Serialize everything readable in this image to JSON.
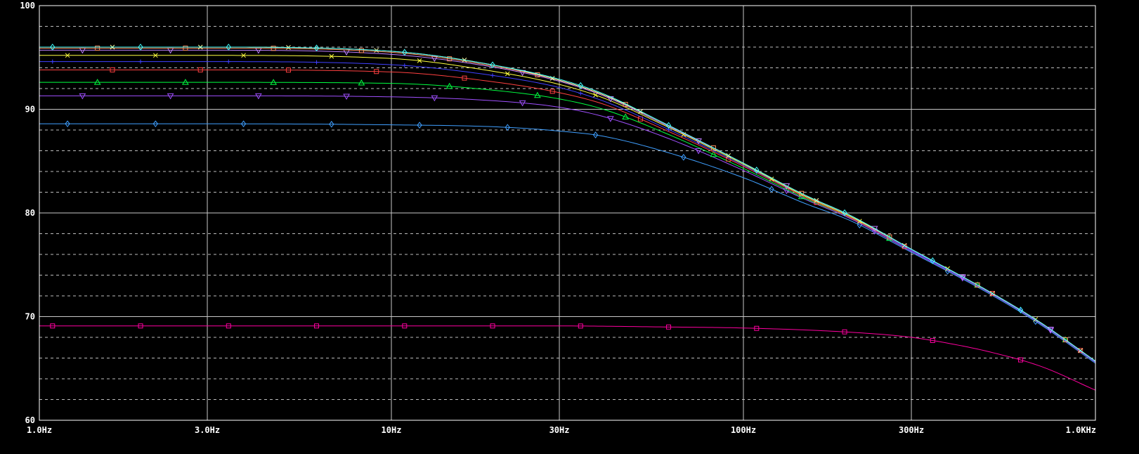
{
  "chart_data": {
    "type": "line",
    "title": "",
    "xlabel": "",
    "ylabel": "",
    "x_scale": "log",
    "xlim": [
      1,
      1000
    ],
    "ylim": [
      60,
      100
    ],
    "grid": true,
    "background": "#000000",
    "grid_color": "#c8c8c8",
    "axis_color": "#ffffff",
    "x_ticks": [
      {
        "value": 1,
        "label": "1.0Hz"
      },
      {
        "value": 3,
        "label": "3.0Hz"
      },
      {
        "value": 10,
        "label": "10Hz"
      },
      {
        "value": 30,
        "label": "30Hz"
      },
      {
        "value": 100,
        "label": "100Hz"
      },
      {
        "value": 300,
        "label": "300Hz"
      },
      {
        "value": 1000,
        "label": "1.0KHz"
      }
    ],
    "y_ticks": [
      {
        "value": 60,
        "label": "60"
      },
      {
        "value": 70,
        "label": "70"
      },
      {
        "value": 80,
        "label": "80"
      },
      {
        "value": 90,
        "label": "90"
      },
      {
        "value": 100,
        "label": "100"
      }
    ],
    "x_minor_gridlines": [],
    "y_minor_gridlines": [
      62,
      64,
      66,
      68,
      72,
      74,
      76,
      78,
      82,
      84,
      86,
      88,
      92,
      94,
      96,
      98
    ],
    "series": [
      {
        "color": "#ff00a0",
        "marker": "square",
        "values": [
          [
            1,
            69.1
          ],
          [
            3,
            69.1
          ],
          [
            10,
            69.1
          ],
          [
            30,
            69.1
          ],
          [
            60,
            69.0
          ],
          [
            100,
            68.9
          ],
          [
            200,
            68.5
          ],
          [
            300,
            68.0
          ],
          [
            400,
            67.3
          ],
          [
            500,
            66.6
          ],
          [
            700,
            65.2
          ],
          [
            1000,
            62.9
          ]
        ]
      },
      {
        "color": "#3f9fff",
        "marker": "diamond",
        "values": [
          [
            1,
            88.6
          ],
          [
            3,
            88.6
          ],
          [
            10,
            88.5
          ],
          [
            20,
            88.3
          ],
          [
            30,
            87.9
          ],
          [
            40,
            87.4
          ],
          [
            60,
            85.9
          ],
          [
            100,
            83.4
          ],
          [
            150,
            80.9
          ],
          [
            200,
            79.3
          ],
          [
            300,
            76.2
          ],
          [
            500,
            72.2
          ],
          [
            700,
            69.2
          ],
          [
            1000,
            65.5
          ]
        ]
      },
      {
        "color": "#a050ff",
        "marker": "triangle-down",
        "values": [
          [
            1,
            91.3
          ],
          [
            3,
            91.3
          ],
          [
            10,
            91.2
          ],
          [
            20,
            90.8
          ],
          [
            30,
            90.2
          ],
          [
            40,
            89.3
          ],
          [
            60,
            87.3
          ],
          [
            100,
            84.1
          ],
          [
            150,
            81.3
          ],
          [
            200,
            79.5
          ],
          [
            300,
            76.3
          ],
          [
            500,
            72.3
          ],
          [
            700,
            69.3
          ],
          [
            1000,
            65.6
          ]
        ]
      },
      {
        "color": "#00ff40",
        "marker": "triangle",
        "values": [
          [
            1,
            92.6
          ],
          [
            3,
            92.6
          ],
          [
            10,
            92.5
          ],
          [
            20,
            91.8
          ],
          [
            30,
            91.0
          ],
          [
            40,
            90.0
          ],
          [
            60,
            87.7
          ],
          [
            100,
            84.3
          ],
          [
            150,
            81.4
          ],
          [
            200,
            79.6
          ],
          [
            300,
            76.4
          ],
          [
            500,
            72.4
          ],
          [
            700,
            69.4
          ],
          [
            1000,
            65.7
          ]
        ]
      },
      {
        "color": "#ff4040",
        "marker": "square",
        "values": [
          [
            1,
            93.8
          ],
          [
            3,
            93.8
          ],
          [
            10,
            93.6
          ],
          [
            20,
            92.6
          ],
          [
            30,
            91.6
          ],
          [
            40,
            90.5
          ],
          [
            60,
            88.0
          ],
          [
            100,
            84.5
          ],
          [
            150,
            81.5
          ],
          [
            200,
            79.6
          ],
          [
            300,
            76.4
          ],
          [
            500,
            72.4
          ],
          [
            700,
            69.4
          ],
          [
            1000,
            65.7
          ]
        ]
      },
      {
        "color": "#4040ff",
        "marker": "plus",
        "values": [
          [
            1,
            94.6
          ],
          [
            3,
            94.6
          ],
          [
            10,
            94.3
          ],
          [
            20,
            93.2
          ],
          [
            30,
            92.1
          ],
          [
            40,
            90.8
          ],
          [
            60,
            88.2
          ],
          [
            100,
            84.6
          ],
          [
            150,
            81.6
          ],
          [
            200,
            79.7
          ],
          [
            300,
            76.4
          ],
          [
            500,
            72.4
          ],
          [
            700,
            69.4
          ],
          [
            1000,
            65.7
          ]
        ]
      },
      {
        "color": "#ffff40",
        "marker": "cross",
        "values": [
          [
            1,
            95.2
          ],
          [
            3,
            95.2
          ],
          [
            10,
            94.9
          ],
          [
            20,
            93.6
          ],
          [
            30,
            92.4
          ],
          [
            40,
            91.1
          ],
          [
            60,
            88.4
          ],
          [
            100,
            84.7
          ],
          [
            150,
            81.6
          ],
          [
            200,
            79.7
          ],
          [
            300,
            76.5
          ],
          [
            500,
            72.4
          ],
          [
            700,
            69.4
          ],
          [
            1000,
            65.7
          ]
        ]
      },
      {
        "color": "#c080ff",
        "marker": "triangle-down",
        "values": [
          [
            1,
            95.7
          ],
          [
            3,
            95.7
          ],
          [
            10,
            95.3
          ],
          [
            20,
            94.0
          ],
          [
            30,
            92.7
          ],
          [
            40,
            91.3
          ],
          [
            60,
            88.5
          ],
          [
            100,
            84.8
          ],
          [
            150,
            81.7
          ],
          [
            200,
            79.8
          ],
          [
            300,
            76.5
          ],
          [
            500,
            72.4
          ],
          [
            700,
            69.4
          ],
          [
            1000,
            65.7
          ]
        ]
      },
      {
        "color": "#ff9060",
        "marker": "square",
        "values": [
          [
            1,
            95.9
          ],
          [
            3,
            95.9
          ],
          [
            10,
            95.5
          ],
          [
            20,
            94.1
          ],
          [
            30,
            92.8
          ],
          [
            40,
            91.4
          ],
          [
            60,
            88.6
          ],
          [
            100,
            84.8
          ],
          [
            150,
            81.7
          ],
          [
            200,
            79.8
          ],
          [
            300,
            76.5
          ],
          [
            500,
            72.4
          ],
          [
            700,
            69.4
          ],
          [
            1000,
            65.7
          ]
        ]
      },
      {
        "color": "#ffffa0",
        "marker": "cross",
        "values": [
          [
            1,
            96.0
          ],
          [
            3,
            96.0
          ],
          [
            10,
            95.6
          ],
          [
            20,
            94.2
          ],
          [
            30,
            92.8
          ],
          [
            40,
            91.4
          ],
          [
            60,
            88.6
          ],
          [
            100,
            84.8
          ],
          [
            150,
            81.7
          ],
          [
            200,
            79.8
          ],
          [
            300,
            76.5
          ],
          [
            500,
            72.4
          ],
          [
            700,
            69.4
          ],
          [
            1000,
            65.7
          ]
        ]
      },
      {
        "color": "#40ffff",
        "marker": "diamond",
        "values": [
          [
            1,
            96.0
          ],
          [
            3,
            96.0
          ],
          [
            10,
            95.6
          ],
          [
            20,
            94.2
          ],
          [
            30,
            92.9
          ],
          [
            40,
            91.5
          ],
          [
            60,
            88.6
          ],
          [
            100,
            84.8
          ],
          [
            150,
            81.7
          ],
          [
            200,
            79.8
          ],
          [
            300,
            76.5
          ],
          [
            500,
            72.4
          ],
          [
            700,
            69.4
          ],
          [
            1000,
            65.7
          ]
        ]
      }
    ]
  }
}
